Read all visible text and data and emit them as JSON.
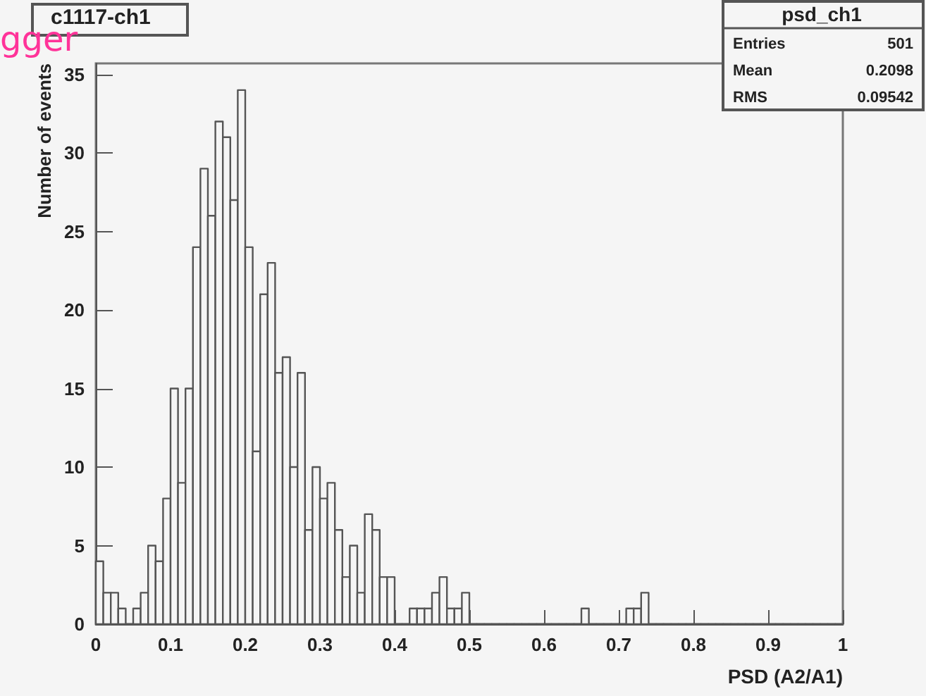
{
  "chart_data": {
    "type": "histogram",
    "title": "c1117-ch1",
    "xlabel": "PSD (A2/A1)",
    "ylabel": "Number of events",
    "annotations": [
      "gger",
      "psd_ch1",
      "Entries 501",
      "Mean 0.2098",
      "RMS 0.09542"
    ],
    "bins": [
      0,
      0.01,
      0.02,
      0.03,
      0.04,
      0.05,
      0.06,
      0.07,
      0.08,
      0.09,
      0.1,
      0.11,
      0.12,
      0.13,
      0.14,
      0.15,
      0.16,
      0.17,
      0.18,
      0.19,
      0.2,
      0.21,
      0.22,
      0.23,
      0.24,
      0.25,
      0.26,
      0.27,
      0.28,
      0.29,
      0.3,
      0.31,
      0.32,
      0.33,
      0.34,
      0.35,
      0.36,
      0.37,
      0.38,
      0.39,
      0.4,
      0.41,
      0.42,
      0.43,
      0.44,
      0.45,
      0.46,
      0.47,
      0.48,
      0.49,
      0.5,
      0.51,
      0.52,
      0.53,
      0.54,
      0.55,
      0.56,
      0.57,
      0.58,
      0.59,
      0.6,
      0.61,
      0.62,
      0.63,
      0.64,
      0.65,
      0.66,
      0.67,
      0.68,
      0.69,
      0.7,
      0.71,
      0.72,
      0.73,
      0.74,
      0.75,
      0.76,
      0.77,
      0.78,
      0.79,
      0.8,
      0.81,
      0.82,
      0.83,
      0.84,
      0.85,
      0.86,
      0.87,
      0.88,
      0.89,
      0.9,
      0.91,
      0.92,
      0.93,
      0.94,
      0.95,
      0.96,
      0.97,
      0.98,
      0.99,
      1
    ],
    "values": [
      4,
      2,
      2,
      1,
      0,
      1,
      2,
      5,
      4,
      8,
      15,
      9,
      15,
      24,
      29,
      26,
      32,
      31,
      27,
      34,
      24,
      11,
      21,
      23,
      16,
      17,
      10,
      16,
      6,
      10,
      8,
      9,
      6,
      3,
      5,
      2,
      7,
      6,
      3,
      3,
      0,
      0,
      1,
      1,
      1,
      2,
      3,
      1,
      1,
      2,
      0,
      0,
      0,
      0,
      0,
      0,
      0,
      0,
      0,
      0,
      0,
      0,
      0,
      0,
      0,
      1,
      0,
      0,
      0,
      0,
      0,
      1,
      1,
      2,
      0,
      0,
      0,
      0,
      0,
      0,
      0,
      0,
      0,
      0,
      0,
      0,
      0,
      0,
      0,
      0,
      0,
      0,
      0,
      0,
      0,
      0,
      0,
      0,
      0,
      0
    ],
    "color": "#555555",
    "xlim": [
      0,
      1
    ],
    "xticks": [
      0,
      0.1,
      0.2,
      0.3,
      0.4,
      0.5,
      0.6,
      0.7,
      0.8,
      0.9,
      1
    ],
    "ylim": [
      0,
      35.7
    ],
    "yticks": [
      0,
      5,
      10,
      15,
      20,
      25,
      30,
      35
    ],
    "grid": false
  }
}
